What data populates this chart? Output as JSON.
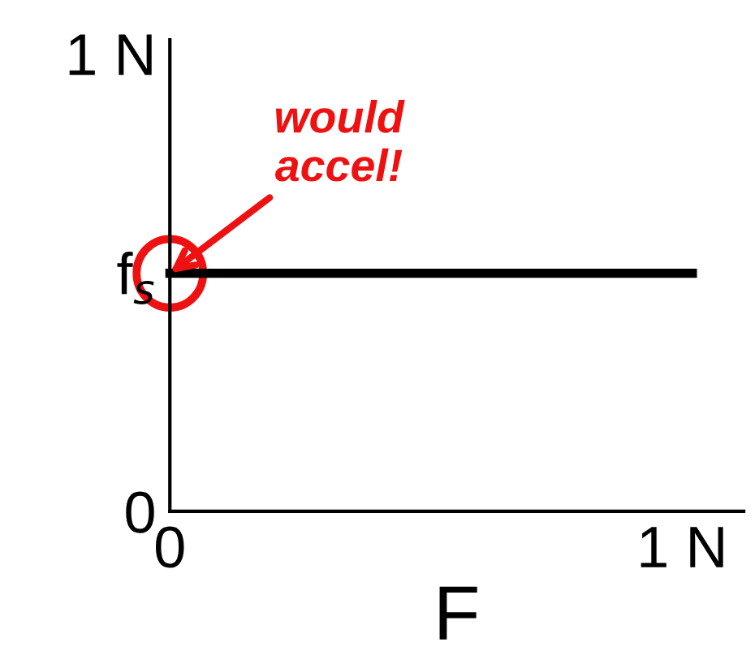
{
  "chart_data": {
    "type": "line",
    "xlabel": "F",
    "x": [
      0,
      1.02
    ],
    "series": [
      {
        "color": "#000000",
        "values": [
          0.52,
          0.52
        ]
      }
    ],
    "xlim": [
      0,
      1.12
    ],
    "ylim": [
      0,
      1.03
    ],
    "xticks": [
      {
        "value": 0,
        "label": "0"
      },
      {
        "value": 1,
        "label": "1 N"
      }
    ],
    "yticks": [
      {
        "value": 0,
        "label": "0"
      },
      {
        "value": 0.52,
        "label": "f$_{s}$"
      },
      {
        "value": 1,
        "label": "1 N"
      }
    ],
    "annotations": [
      {
        "text": "would\naccel!",
        "x": 0,
        "y": 0.52
      }
    ],
    "grid": false,
    "legend": false,
    "line_style": "solid"
  }
}
